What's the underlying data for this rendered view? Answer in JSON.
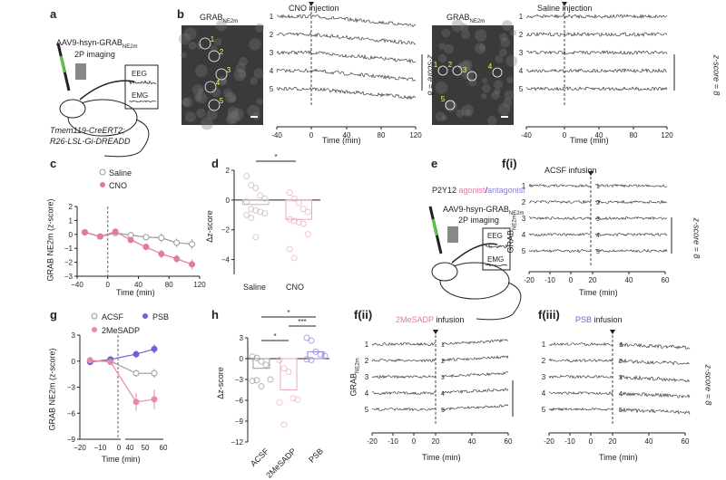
{
  "colors": {
    "saline": "#999999",
    "cno": "#e07aa8",
    "acsf": "#999999",
    "mesadp": "#e88aac",
    "psb": "#6b63d6",
    "agonist": "#e07aa8",
    "antagonist": "#8a7fd8",
    "syringe": "#5fc44a"
  },
  "panel_a": {
    "label": "a",
    "virus": "AAV9-hsyn-GRAB",
    "virus_sub": "NE2m",
    "imaging": "2P imaging",
    "eeg": "EEG",
    "emg": "EMG",
    "genotype1": "Tmem119-CreERT2;",
    "genotype2": "R26-LSL-Gi-DREADD"
  },
  "panel_b": {
    "label": "b",
    "left": {
      "img_title": "GRAB",
      "img_sub": "NE2m",
      "event": "CNO injection",
      "scale": "z-score = 8",
      "rois": [
        "1",
        "2",
        "3",
        "4",
        "5"
      ]
    },
    "right": {
      "img_title": "GRAB",
      "img_sub": "NE2m",
      "event": "Saline injection",
      "scale": "z-score = 8",
      "rois": [
        "1",
        "2",
        "3",
        "4",
        "5"
      ]
    },
    "xticks": [
      "-40",
      "0",
      "40",
      "80",
      "120"
    ],
    "xlabel": "Time (min)",
    "traces": [
      "1",
      "2",
      "3",
      "4",
      "5"
    ]
  },
  "panel_e": {
    "label": "e",
    "title_pre": "P2Y12 ",
    "agonist": "agonist",
    "slash": "/",
    "antagonist": "antagonist",
    "virus": "AAV9-hsyn-GRAB",
    "virus_sub": "NE2m",
    "imaging": "2P imaging",
    "eeg": "EEG",
    "emg": "EMG"
  },
  "panel_f": {
    "i": {
      "label": "f(i)",
      "event": "ACSF infusion",
      "scale": "z-score = 8"
    },
    "ii": {
      "label": "f(ii)",
      "event_drug": "2MeSADP",
      "event": " infusion"
    },
    "iii": {
      "label": "f(iii)",
      "event_drug": "PSB",
      "event": " infusion",
      "scale": "z-score = 8"
    },
    "ylabel": "GRAB",
    "ylabel_sub": "NE2m",
    "xticks": [
      "-20",
      "-10",
      "0",
      "20",
      "40",
      "60"
    ],
    "xlabel": "Time (min)",
    "traces": [
      "1",
      "2",
      "3",
      "4",
      "5"
    ]
  },
  "chart_data": [
    {
      "panel": "c",
      "type": "line",
      "xlabel": "Time (min)",
      "ylabel": "GRAB NE2m (z-score)",
      "xlim": [
        -40,
        120
      ],
      "ylim": [
        -3,
        2
      ],
      "xticks": [
        -40,
        0,
        40,
        80,
        120
      ],
      "yticks": [
        -3,
        -2,
        -1,
        0,
        1,
        2
      ],
      "legend": "top-right",
      "series": [
        {
          "name": "Saline",
          "x": [
            -30,
            -10,
            10,
            30,
            50,
            70,
            90,
            110
          ],
          "y": [
            0.15,
            -0.15,
            0.1,
            -0.05,
            -0.2,
            -0.25,
            -0.6,
            -0.7
          ],
          "err": [
            0.1,
            0.1,
            0.15,
            0.2,
            0.2,
            0.3,
            0.3,
            0.35
          ]
        },
        {
          "name": "CNO",
          "x": [
            -30,
            -10,
            10,
            30,
            50,
            70,
            90,
            110
          ],
          "y": [
            0.15,
            -0.15,
            0.2,
            -0.4,
            -0.9,
            -1.4,
            -1.75,
            -2.15
          ],
          "err": [
            0.1,
            0.1,
            0.2,
            0.2,
            0.25,
            0.3,
            0.3,
            0.35
          ]
        }
      ]
    },
    {
      "panel": "d",
      "type": "bar",
      "ylabel": "Δz-score",
      "categories": [
        "Saline",
        "CNO"
      ],
      "values": [
        -0.3,
        -1.3
      ],
      "ylim": [
        -5,
        2
      ],
      "yticks": [
        -4,
        -2,
        0,
        2
      ],
      "significance": "*",
      "points": [
        [
          1.6,
          1.0,
          0.8,
          0.3,
          0.1,
          -0.1,
          -0.6,
          -0.7,
          -0.8,
          -0.9,
          -1.0,
          -1.2,
          -2.5
        ],
        [
          0.5,
          0.1,
          -0.2,
          -0.6,
          -0.8,
          -1.3,
          -1.4,
          -1.5,
          -1.6,
          -2.3,
          -3.3,
          -3.9
        ]
      ]
    },
    {
      "panel": "g",
      "type": "line",
      "xlabel": "Time (min)",
      "ylabel": "GRAB NE2m (z-score)",
      "ylim": [
        -9,
        3
      ],
      "yticks": [
        -9,
        -6,
        -3,
        0,
        3
      ],
      "xticks": [
        -20,
        -10,
        0,
        40,
        50,
        60
      ],
      "legend": "top",
      "series": [
        {
          "name": "ACSF",
          "x": [
            -15,
            -5,
            45,
            55
          ],
          "y": [
            0,
            0,
            -1.4,
            -1.4
          ],
          "err": [
            0.2,
            0.2,
            0.4,
            0.5
          ]
        },
        {
          "name": "PSB",
          "x": [
            -15,
            -5,
            45,
            55
          ],
          "y": [
            -0.1,
            0.2,
            0.8,
            1.4
          ],
          "err": [
            0.2,
            0.2,
            0.4,
            0.5
          ]
        },
        {
          "name": "2MeSADP",
          "x": [
            -15,
            -5,
            45,
            55
          ],
          "y": [
            0.1,
            -0.1,
            -4.7,
            -4.4
          ],
          "err": [
            0.2,
            0.2,
            1.0,
            1.1
          ]
        }
      ]
    },
    {
      "panel": "h",
      "type": "bar",
      "ylabel": "Δz-score",
      "categories": [
        "ACSF",
        "2MeSADP",
        "PSB"
      ],
      "values": [
        -1.4,
        -4.5,
        1.0
      ],
      "ylim": [
        -12,
        3
      ],
      "yticks": [
        -12,
        -9,
        -6,
        -3,
        0,
        3
      ],
      "significance": [
        {
          "pair": [
            "ACSF",
            "2MeSADP"
          ],
          "label": "*"
        },
        {
          "pair": [
            "2MeSADP",
            "PSB"
          ],
          "label": "***"
        },
        {
          "pair": [
            "ACSF",
            "PSB"
          ],
          "label": "*"
        }
      ],
      "points": [
        [
          0.3,
          0.1,
          -0.4,
          -0.9,
          -3.0,
          -3.2,
          -3.1,
          -4.0
        ],
        [
          -0.2,
          -1.4,
          -1.9,
          -5.7,
          -5.9,
          -6.3,
          -9.5
        ],
        [
          3.0,
          2.6,
          1.0,
          0.6,
          0.4,
          -0.1,
          -0.2
        ]
      ]
    }
  ]
}
